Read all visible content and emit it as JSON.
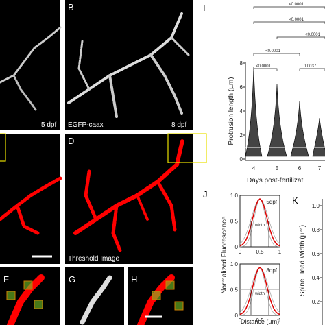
{
  "panel_a": {
    "stage": "5 dpf"
  },
  "panel_b": {
    "label": "B",
    "marker": "EGFP-caax",
    "stage": "8 dpf"
  },
  "panel_d": {
    "label": "D",
    "caption": "Threshold Image"
  },
  "panel_f": {
    "label": "F"
  },
  "panel_g": {
    "label": "G"
  },
  "panel_h": {
    "label": "H"
  },
  "panel_i": {
    "label": "I",
    "y_axis_label": "Protrusion length (µm)",
    "x_axis_label": "Days post-fertilizat",
    "yticks": [
      "0",
      "2",
      "4",
      "6",
      "8"
    ],
    "categories": [
      "4",
      "5",
      "6",
      "7"
    ],
    "p_values": [
      "<0.0001",
      "<0.0001",
      "<0.0001",
      "<0.0001",
      "<0.0001",
      "0.0037"
    ]
  },
  "panel_j": {
    "label": "J",
    "y_axis_label": "Normalized Fluorescence",
    "x_axis_label": "Distance (µm)",
    "yticks": [
      "0",
      "0.5",
      "1.0"
    ],
    "xticks": [
      "0",
      "0.5",
      "1"
    ],
    "top_stage": "5dpf",
    "bottom_stage": "8dpf",
    "width_label": "width"
  },
  "panel_k": {
    "label": "K",
    "y_axis_label": "Spine Head Width (µm)",
    "yticks": [
      "0.2",
      "0.4",
      "0.6",
      "0.8",
      "1.0"
    ]
  }
}
